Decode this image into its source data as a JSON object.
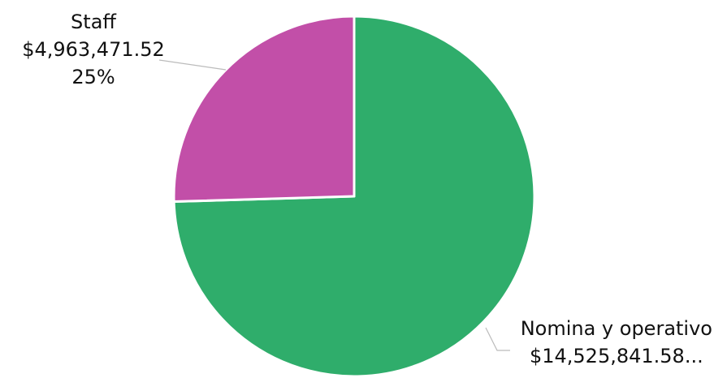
{
  "chart_data": {
    "type": "pie",
    "title": "",
    "slices": [
      {
        "name": "Nomina y operativo",
        "value": 14525841.58,
        "value_label": "$14,525,841.58...",
        "percent_label": "",
        "color": "#2fad6b"
      },
      {
        "name": "Staff",
        "value": 4963471.52,
        "value_label": "$4,963,471.52",
        "percent_label": "25%",
        "color": "#c24fa8"
      }
    ],
    "start_angle": "12 o'clock",
    "direction": "clockwise",
    "slice_border_color": "#ffffff",
    "leader_line_color": "#bbbbbb"
  }
}
